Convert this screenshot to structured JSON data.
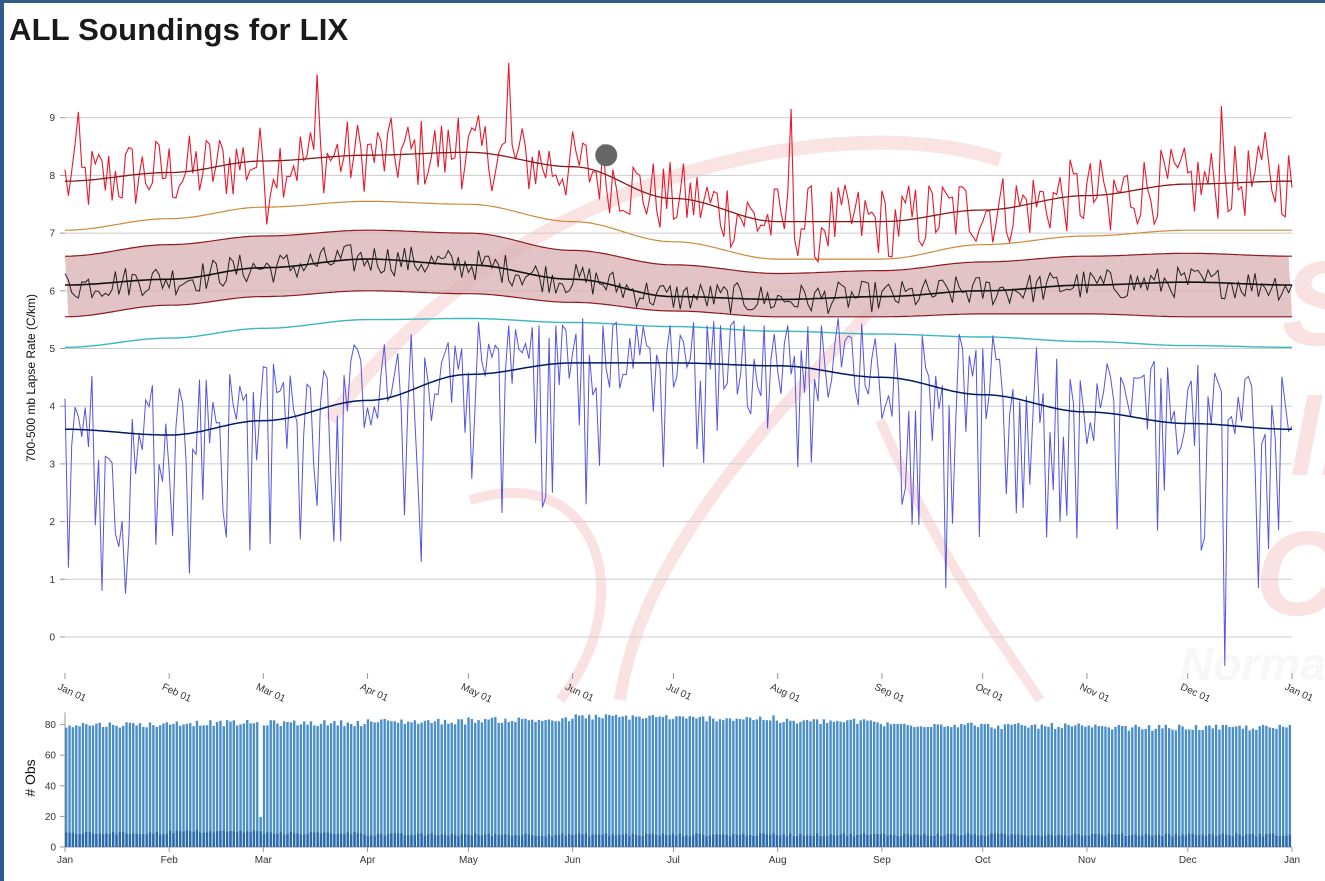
{
  "page": {
    "title": "ALL Soundings for LIX"
  },
  "colors": {
    "max": "#e8192c",
    "p90": "#cc8a3a",
    "band_fill": "#d9b0b3",
    "band_edge": "#8b1a1f",
    "mean": "#222222",
    "p10": "#3ab8c0",
    "min": "#5555e0",
    "min_mean": "#001a66",
    "obs_bar": "#4a8fc8",
    "obs_bar_low": "#2a6aaa",
    "grid": "#cccccc",
    "watermark": "#f6cccc",
    "marker": "#666666"
  },
  "watermark": {
    "text_1": "S",
    "text_2": "ll",
    "text_3": "C",
    "text_4": "Norman"
  },
  "chart_data": [
    {
      "type": "line",
      "ylabel": "700-500 mb Lapse Rate (C/km)",
      "ylim": [
        -0.5,
        9.8
      ],
      "yticks": [
        "0",
        "1",
        "2",
        "3",
        "4",
        "5",
        "6",
        "7",
        "8",
        "9"
      ],
      "xticks": [
        "Jan 01",
        "Feb 01",
        "Mar 01",
        "Apr 01",
        "May 01",
        "Jun 01",
        "Jul 01",
        "Aug 01",
        "Sep 01",
        "Oct 01",
        "Nov 01",
        "Dec 01",
        "Jan 01"
      ],
      "x_domain_days": [
        1,
        366
      ],
      "grid": "horizontal",
      "legend": "none",
      "curve_knots_doy": [
        1,
        32,
        60,
        91,
        121,
        152,
        182,
        213,
        244,
        274,
        305,
        335,
        366
      ],
      "series": [
        {
          "key": "max_running",
          "values": [
            7.9,
            8.05,
            8.25,
            8.35,
            8.4,
            8.15,
            7.6,
            7.2,
            7.2,
            7.4,
            7.65,
            7.85,
            7.9
          ]
        },
        {
          "key": "p90",
          "values": [
            7.05,
            7.25,
            7.45,
            7.55,
            7.5,
            7.2,
            6.85,
            6.55,
            6.55,
            6.8,
            6.95,
            7.05,
            7.05
          ]
        },
        {
          "key": "p75",
          "values": [
            6.6,
            6.8,
            6.95,
            7.05,
            7.0,
            6.7,
            6.45,
            6.3,
            6.35,
            6.5,
            6.6,
            6.65,
            6.6
          ]
        },
        {
          "key": "mean",
          "values": [
            6.1,
            6.2,
            6.4,
            6.55,
            6.45,
            6.2,
            5.9,
            5.85,
            5.9,
            6.0,
            6.1,
            6.15,
            6.1
          ]
        },
        {
          "key": "p25",
          "values": [
            5.55,
            5.75,
            5.9,
            6.0,
            5.95,
            5.8,
            5.65,
            5.55,
            5.55,
            5.6,
            5.6,
            5.55,
            5.55
          ]
        },
        {
          "key": "p10",
          "values": [
            5.02,
            5.18,
            5.35,
            5.5,
            5.52,
            5.45,
            5.38,
            5.3,
            5.25,
            5.2,
            5.12,
            5.05,
            5.02
          ]
        },
        {
          "key": "min_running",
          "values": [
            3.6,
            3.5,
            3.75,
            4.1,
            4.55,
            4.75,
            4.75,
            4.7,
            4.5,
            4.2,
            3.9,
            3.7,
            3.6
          ]
        }
      ],
      "spikes": {
        "max_high": [
          [
            76,
            9.75
          ],
          [
            133,
            9.95
          ],
          [
            217,
            9.15
          ],
          [
            345,
            9.2
          ],
          [
            358,
            8.75
          ],
          [
            5,
            9.1
          ],
          [
            118,
            9.0
          ]
        ],
        "max_low": [
          [
            61,
            7.15
          ],
          [
            225,
            6.5
          ],
          [
            246,
            6.6
          ],
          [
            312,
            7.05
          ]
        ],
        "min_low": [
          [
            12,
            0.8
          ],
          [
            19,
            0.75
          ],
          [
            38,
            1.1
          ],
          [
            56,
            1.5
          ],
          [
            107,
            1.3
          ],
          [
            146,
            2.5
          ],
          [
            263,
            0.85
          ],
          [
            297,
            2.0
          ],
          [
            339,
            1.5
          ],
          [
            346,
            -0.5
          ],
          [
            356,
            0.85
          ],
          [
            362,
            1.85
          ],
          [
            2,
            1.2
          ],
          [
            28,
            1.6
          ]
        ]
      },
      "point_marker_doy": 162,
      "point_marker_value": 8.35
    },
    {
      "type": "bar",
      "ylabel": "# Obs",
      "ylim": [
        0,
        88
      ],
      "yticks": [
        "0",
        "20",
        "40",
        "60",
        "80"
      ],
      "xticks": [
        "Jan",
        "Feb",
        "Mar",
        "Apr",
        "May",
        "Jun",
        "Jul",
        "Aug",
        "Sep",
        "Oct",
        "Nov",
        "Dec",
        "Jan"
      ],
      "month_mean_obs": [
        80,
        81,
        81,
        82,
        83,
        85,
        84,
        82,
        80,
        79,
        78,
        78
      ],
      "month_low_obs": [
        9,
        10,
        9,
        8,
        8,
        8,
        8,
        8,
        8,
        8,
        8,
        8
      ],
      "missing_doy": 59,
      "missing_doy_value": 21
    }
  ]
}
